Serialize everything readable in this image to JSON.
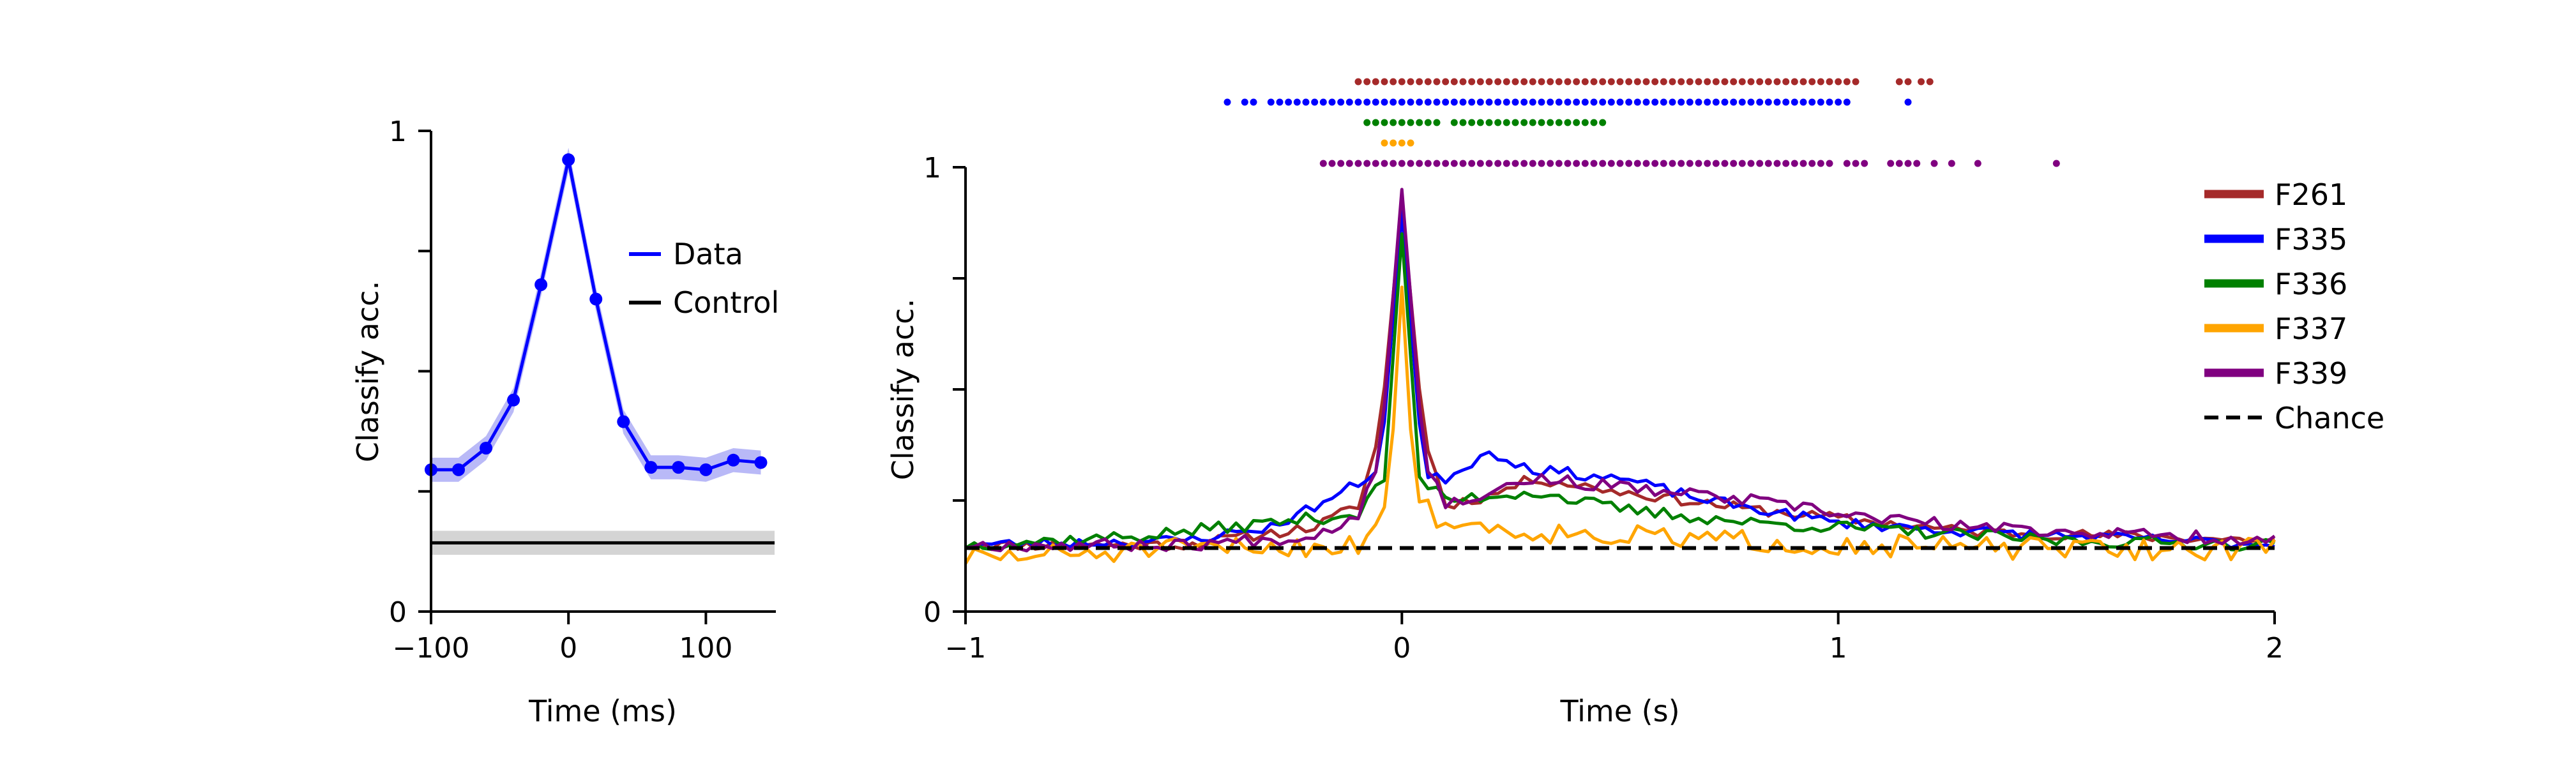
{
  "colors": {
    "data": "#0000ff",
    "data_band": "#8080f0",
    "control": "#000000",
    "control_band": "#b0b0b0",
    "F261": "#a52a2a",
    "F335": "#0000ff",
    "F336": "#008000",
    "F337": "#ffa500",
    "F339": "#800080",
    "chance": "#000000"
  },
  "chart_data": [
    {
      "type": "line",
      "xlabel": "Time (ms)",
      "ylabel": "Classify acc.",
      "xlim": [
        -100,
        150
      ],
      "ylim": [
        0,
        1
      ],
      "xticks": [
        -100,
        0,
        100
      ],
      "xtick_labels": [
        "−100",
        "0",
        "100"
      ],
      "yticks": [
        0,
        0.25,
        0.5,
        0.75,
        1
      ],
      "ytick_labels": [
        "0",
        "",
        "",
        "",
        "1"
      ],
      "grid": false,
      "legend_position": "center-right",
      "series": [
        {
          "name": "Data",
          "color_key": "data",
          "markers": true,
          "x": [
            -100,
            -80,
            -60,
            -40,
            -20,
            0,
            20,
            40,
            60,
            80,
            100,
            120,
            140
          ],
          "y": [
            0.295,
            0.295,
            0.34,
            0.44,
            0.68,
            0.94,
            0.65,
            0.395,
            0.3,
            0.3,
            0.295,
            0.315,
            0.31
          ],
          "band_halfwidth": 0.025
        },
        {
          "name": "Control",
          "color_key": "control",
          "markers": false,
          "x": [
            -100,
            150
          ],
          "y": [
            0.143,
            0.143
          ],
          "band_halfwidth": 0.025
        }
      ]
    },
    {
      "type": "line",
      "xlabel": "Time (s)",
      "ylabel": "Classify acc.",
      "xlim": [
        -1,
        2
      ],
      "ylim": [
        0,
        1
      ],
      "xticks": [
        -1,
        0,
        1,
        2
      ],
      "xtick_labels": [
        "−1",
        "0",
        "1",
        "2"
      ],
      "yticks": [
        0,
        0.25,
        0.5,
        0.75,
        1
      ],
      "ytick_labels": [
        "0",
        "",
        "",
        "",
        "1"
      ],
      "grid": false,
      "legend_position": "right",
      "series": [
        {
          "name": "F261",
          "color_key": "F261",
          "keypoints": [
            [
              -1,
              0.15
            ],
            [
              -0.5,
              0.15
            ],
            [
              -0.2,
              0.19
            ],
            [
              -0.1,
              0.24
            ],
            [
              -0.05,
              0.4
            ],
            [
              0,
              0.92
            ],
            [
              0.05,
              0.4
            ],
            [
              0.1,
              0.24
            ],
            [
              0.2,
              0.26
            ],
            [
              0.3,
              0.3
            ],
            [
              0.5,
              0.27
            ],
            [
              0.8,
              0.23
            ],
            [
              1.0,
              0.21
            ],
            [
              1.3,
              0.18
            ],
            [
              2,
              0.16
            ]
          ],
          "noise": 0.012,
          "seed": 11
        },
        {
          "name": "F335",
          "color_key": "F335",
          "keypoints": [
            [
              -1,
              0.15
            ],
            [
              -0.5,
              0.16
            ],
            [
              -0.3,
              0.19
            ],
            [
              -0.15,
              0.26
            ],
            [
              -0.05,
              0.32
            ],
            [
              0,
              0.9
            ],
            [
              0.05,
              0.3
            ],
            [
              0.1,
              0.3
            ],
            [
              0.2,
              0.36
            ],
            [
              0.3,
              0.32
            ],
            [
              0.5,
              0.3
            ],
            [
              0.7,
              0.25
            ],
            [
              1.0,
              0.2
            ],
            [
              1.3,
              0.18
            ],
            [
              2,
              0.15
            ]
          ],
          "noise": 0.012,
          "seed": 23
        },
        {
          "name": "F336",
          "color_key": "F336",
          "keypoints": [
            [
              -1,
              0.15
            ],
            [
              -0.6,
              0.17
            ],
            [
              -0.3,
              0.2
            ],
            [
              -0.1,
              0.22
            ],
            [
              -0.04,
              0.3
            ],
            [
              0,
              0.85
            ],
            [
              0.04,
              0.3
            ],
            [
              0.1,
              0.25
            ],
            [
              0.3,
              0.27
            ],
            [
              0.5,
              0.23
            ],
            [
              0.8,
              0.2
            ],
            [
              1.0,
              0.19
            ],
            [
              1.5,
              0.16
            ],
            [
              2,
              0.15
            ]
          ],
          "noise": 0.014,
          "seed": 37
        },
        {
          "name": "F337",
          "color_key": "F337",
          "keypoints": [
            [
              -1,
              0.12
            ],
            [
              -0.5,
              0.14
            ],
            [
              -0.1,
              0.15
            ],
            [
              -0.03,
              0.25
            ],
            [
              0,
              0.73
            ],
            [
              0.03,
              0.25
            ],
            [
              0.1,
              0.2
            ],
            [
              0.3,
              0.18
            ],
            [
              0.5,
              0.17
            ],
            [
              1.0,
              0.15
            ],
            [
              1.5,
              0.14
            ],
            [
              2,
              0.14
            ]
          ],
          "noise": 0.025,
          "seed": 51
        },
        {
          "name": "F339",
          "color_key": "F339",
          "keypoints": [
            [
              -1,
              0.15
            ],
            [
              -0.5,
              0.15
            ],
            [
              -0.2,
              0.17
            ],
            [
              -0.1,
              0.22
            ],
            [
              -0.05,
              0.35
            ],
            [
              0,
              0.95
            ],
            [
              0.05,
              0.35
            ],
            [
              0.1,
              0.24
            ],
            [
              0.2,
              0.27
            ],
            [
              0.3,
              0.3
            ],
            [
              0.5,
              0.28
            ],
            [
              0.8,
              0.25
            ],
            [
              1.0,
              0.22
            ],
            [
              1.3,
              0.19
            ],
            [
              2,
              0.16
            ]
          ],
          "noise": 0.014,
          "seed": 67
        },
        {
          "name": "Chance",
          "color_key": "chance",
          "dashed": true,
          "keypoints": [
            [
              -1,
              0.143
            ],
            [
              2,
              0.143
            ]
          ],
          "noise": 0,
          "seed": 0
        }
      ],
      "significance": {
        "dot_spacing_s": 0.02,
        "rows": [
          {
            "color_key": "F261",
            "segments": [
              [
                -0.1,
                1.04
              ],
              [
                1.14,
                1.16
              ],
              [
                1.19,
                1.21
              ]
            ]
          },
          {
            "color_key": "F335",
            "segments": [
              [
                -0.4,
                -0.4
              ],
              [
                -0.36,
                -0.34
              ],
              [
                -0.3,
                1.02
              ],
              [
                1.16,
                1.16
              ]
            ]
          },
          {
            "color_key": "F336",
            "segments": [
              [
                -0.08,
                0.08
              ],
              [
                0.12,
                0.46
              ]
            ]
          },
          {
            "color_key": "F337",
            "segments": [
              [
                -0.04,
                0.02
              ]
            ]
          },
          {
            "color_key": "F339",
            "segments": [
              [
                -0.18,
                0.98
              ],
              [
                1.02,
                1.06
              ],
              [
                1.12,
                1.18
              ],
              [
                1.22,
                1.22
              ],
              [
                1.26,
                1.26
              ],
              [
                1.32,
                1.32
              ],
              [
                1.5,
                1.5
              ]
            ]
          }
        ]
      }
    }
  ]
}
